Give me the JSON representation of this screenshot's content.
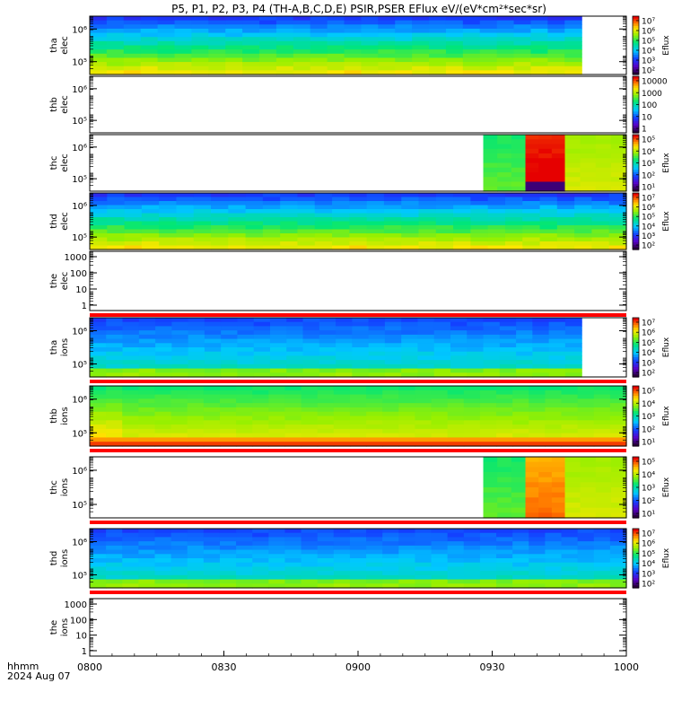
{
  "title": "P5, P1, P2, P3, P4 (TH-A,B,C,D,E) PSIR,PSER EFlux eV/(eV*cm²*sec*sr)",
  "footer": {
    "line1": "hhmm",
    "line2": "2024 Aug 07"
  },
  "chart_data": {
    "type": "heatmap",
    "x_axis": {
      "ticks": [
        "0800",
        "0830",
        "0900",
        "0930",
        "1000"
      ]
    },
    "panels": [
      {
        "probe": "tha",
        "species": "elec",
        "y_ticks": [
          "10⁶",
          "10⁵"
        ],
        "y_scale": "log",
        "colorbar": {
          "label": "Eflux",
          "ticks": [
            "10⁷",
            "10⁶",
            "10⁵",
            "10⁴",
            "10³",
            "10²"
          ]
        },
        "data_end_time": "0950",
        "pattern": "elec_broad"
      },
      {
        "probe": "thb",
        "species": "elec",
        "y_ticks": [
          "10⁶",
          "10⁵"
        ],
        "y_scale": "log",
        "colorbar": {
          "label": "",
          "ticks": [
            "10000",
            "1000",
            "100",
            "10",
            "1"
          ]
        },
        "data_end_time": "",
        "pattern": "empty"
      },
      {
        "probe": "thc",
        "species": "elec",
        "y_ticks": [
          "10⁶",
          "10⁵"
        ],
        "y_scale": "log",
        "colorbar": {
          "label": "Eflux",
          "ticks": [
            "10⁵",
            "10⁴",
            "10³",
            "10²",
            "10¹"
          ]
        },
        "data_start_time": "0928",
        "pattern": "late_burst"
      },
      {
        "probe": "thd",
        "species": "elec",
        "y_ticks": [
          "10⁶",
          "10⁵"
        ],
        "y_scale": "log",
        "colorbar": {
          "label": "Eflux",
          "ticks": [
            "10⁷",
            "10⁶",
            "10⁵",
            "10⁴",
            "10³",
            "10²"
          ]
        },
        "data_end_time": "1000",
        "pattern": "elec_broad"
      },
      {
        "probe": "the",
        "species": "elec",
        "y_ticks": [
          "1000",
          "100",
          "10",
          "1"
        ],
        "y_scale": "log",
        "colorbar": null,
        "pattern": "empty_redline"
      },
      {
        "probe": "tha",
        "species": "ions",
        "y_ticks": [
          "10⁶",
          "10⁵"
        ],
        "y_scale": "log",
        "colorbar": {
          "label": "Eflux",
          "ticks": [
            "10⁷",
            "10⁶",
            "10⁵",
            "10⁴",
            "10³",
            "10²"
          ]
        },
        "data_end_time": "0950",
        "pattern": "ions_blue"
      },
      {
        "probe": "thb",
        "species": "ions",
        "y_ticks": [
          "10⁶",
          "10⁵"
        ],
        "y_scale": "log",
        "colorbar": {
          "label": "Eflux",
          "ticks": [
            "10⁵",
            "10⁴",
            "10³",
            "10²",
            "10¹"
          ]
        },
        "data_end_time": "1000",
        "pattern": "ions_green"
      },
      {
        "probe": "thc",
        "species": "ions",
        "y_ticks": [
          "10⁶",
          "10⁵"
        ],
        "y_scale": "log",
        "colorbar": {
          "label": "Eflux",
          "ticks": [
            "10⁵",
            "10⁴",
            "10³",
            "10²",
            "10¹"
          ]
        },
        "data_start_time": "0928",
        "pattern": "late_burst_ion"
      },
      {
        "probe": "thd",
        "species": "ions",
        "y_ticks": [
          "10⁶",
          "10⁵"
        ],
        "y_scale": "log",
        "colorbar": {
          "label": "Eflux",
          "ticks": [
            "10⁷",
            "10⁶",
            "10⁵",
            "10⁴",
            "10³",
            "10²"
          ]
        },
        "data_end_time": "1000",
        "pattern": "ions_blue"
      },
      {
        "probe": "the",
        "species": "ions",
        "y_ticks": [
          "1000",
          "100",
          "10",
          "1"
        ],
        "y_scale": "log",
        "colorbar": null,
        "pattern": "empty"
      }
    ]
  }
}
